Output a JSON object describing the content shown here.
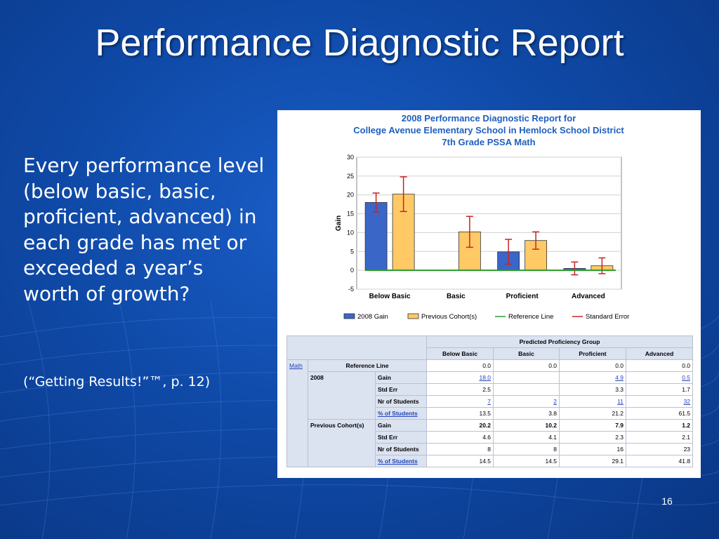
{
  "slide": {
    "title": "Performance Diagnostic Report",
    "body": "Every performance level (below basic, basic, proficient, advanced) in each grade has met or exceeded a year’s worth of growth?",
    "citation": "(“Getting Results!”™, p. 12)",
    "page_number": "16"
  },
  "chart_data": {
    "type": "bar",
    "title": [
      "2008 Performance Diagnostic Report for",
      "College Avenue Elementary School in Hemlock School District",
      "7th Grade PSSA Math"
    ],
    "xlabel": "",
    "ylabel": "Gain",
    "categories": [
      "Below Basic",
      "Basic",
      "Proficient",
      "Advanced"
    ],
    "ylim": [
      -5,
      30
    ],
    "yticks": [
      -5,
      0,
      5,
      10,
      15,
      20,
      25,
      30
    ],
    "grid": true,
    "series": [
      {
        "name": "2008 Gain",
        "color": "#3a66c8",
        "values": [
          18.0,
          null,
          4.9,
          0.5
        ],
        "std_err": [
          2.5,
          null,
          3.3,
          1.7
        ]
      },
      {
        "name": "Previous Cohort(s)",
        "color": "#ffc966",
        "values": [
          20.2,
          10.2,
          7.9,
          1.2
        ],
        "std_err": [
          4.6,
          4.1,
          2.3,
          2.1
        ]
      }
    ],
    "reference_line": {
      "name": "Reference Line",
      "value": 0.0,
      "color": "#2a9a2a"
    },
    "error_bars": {
      "name": "Standard Error",
      "color": "#cc2222"
    },
    "legend": [
      "2008 Gain",
      "Previous Cohort(s)",
      "Reference Line",
      "Standard Error"
    ],
    "legend_position": "bottom"
  },
  "table": {
    "group_header": "Predicted Proficiency Group",
    "columns": [
      "Below Basic",
      "Basic",
      "Proficient",
      "Advanced"
    ],
    "subject_link": "Math",
    "reference_label": "Reference Line",
    "reference_values": [
      "0.0",
      "0.0",
      "0.0",
      "0.0"
    ],
    "groups": [
      {
        "label": "2008",
        "rows": [
          {
            "label": "Gain",
            "label_link": false,
            "values": [
              "18.0",
              "",
              "4.9",
              "0.5"
            ],
            "links": true,
            "bold": false
          },
          {
            "label": "Std Err",
            "label_link": false,
            "values": [
              "2.5",
              "",
              "3.3",
              "1.7"
            ],
            "links": false,
            "bold": false
          },
          {
            "label": "Nr of Students",
            "label_link": false,
            "values": [
              "7",
              "2",
              "11",
              "32"
            ],
            "links": true,
            "bold": false
          },
          {
            "label": "% of Students",
            "label_link": true,
            "values": [
              "13.5",
              "3.8",
              "21.2",
              "61.5"
            ],
            "links": false,
            "bold": false
          }
        ]
      },
      {
        "label": "Previous Cohort(s)",
        "rows": [
          {
            "label": "Gain",
            "label_link": false,
            "values": [
              "20.2",
              "10.2",
              "7.9",
              "1.2"
            ],
            "links": false,
            "bold": true
          },
          {
            "label": "Std Err",
            "label_link": false,
            "values": [
              "4.6",
              "4.1",
              "2.3",
              "2.1"
            ],
            "links": false,
            "bold": false
          },
          {
            "label": "Nr of Students",
            "label_link": false,
            "values": [
              "8",
              "8",
              "16",
              "23"
            ],
            "links": false,
            "bold": false
          },
          {
            "label": "% of Students",
            "label_link": true,
            "values": [
              "14.5",
              "14.5",
              "29.1",
              "41.8"
            ],
            "links": false,
            "bold": false
          }
        ]
      }
    ]
  }
}
